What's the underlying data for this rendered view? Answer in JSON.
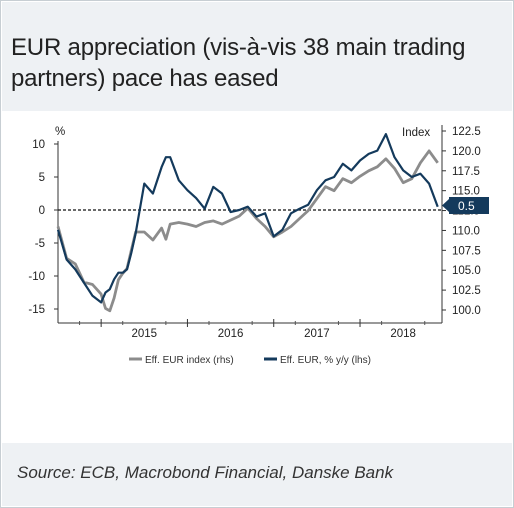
{
  "title": "EUR appreciation (vis-à-vis 38 main trading partners) pace has eased",
  "source": "Source: ECB, Macrobond Financial, Danske Bank",
  "colors": {
    "index_series": "#8c8c8c",
    "yy_series": "#143a5c",
    "badge": "#143a5c",
    "band": "#eef1f4"
  },
  "chart_data": {
    "type": "line",
    "x_axis": {
      "ticks": [
        "2015",
        "2016",
        "2017",
        "2018"
      ],
      "range": [
        2014.5,
        2018.95
      ]
    },
    "y_left": {
      "label": "%",
      "ticks": [
        "10",
        "5",
        "0",
        "-5",
        "-10",
        "-15"
      ],
      "range": [
        -15,
        10
      ]
    },
    "y_right": {
      "label": "Index",
      "ticks": [
        "122.5",
        "120.0",
        "117.5",
        "115.0",
        "112.5",
        "110.0",
        "107.5",
        "105.0",
        "102.5",
        "100.0"
      ],
      "range": [
        100,
        122.5
      ]
    },
    "zero_line": "dashed",
    "end_badge": "0.5",
    "legend": [
      "Eff. EUR index (rhs)",
      "Eff. EUR, % y/y (lhs)"
    ],
    "series": [
      {
        "name": "Eff. EUR index (rhs)",
        "axis": "right",
        "x": [
          2014.5,
          2014.6,
          2014.7,
          2014.8,
          2014.9,
          2015.0,
          2015.05,
          2015.1,
          2015.15,
          2015.2,
          2015.25,
          2015.3,
          2015.35,
          2015.4,
          2015.5,
          2015.6,
          2015.7,
          2015.75,
          2015.8,
          2015.9,
          2016.0,
          2016.1,
          2016.2,
          2016.3,
          2016.4,
          2016.5,
          2016.6,
          2016.7,
          2016.8,
          2016.9,
          2017.0,
          2017.1,
          2017.2,
          2017.3,
          2017.4,
          2017.5,
          2017.6,
          2017.7,
          2017.8,
          2017.9,
          2018.0,
          2018.1,
          2018.2,
          2018.3,
          2018.4,
          2018.5,
          2018.6,
          2018.7,
          2018.8,
          2018.9
        ],
        "y": [
          110.5,
          106.5,
          105.8,
          103.5,
          103.2,
          102.0,
          100.2,
          99.9,
          101.5,
          103.8,
          104.6,
          105.2,
          107.5,
          109.8,
          109.8,
          108.8,
          110.3,
          108.9,
          110.8,
          111.0,
          110.8,
          110.5,
          111.0,
          111.2,
          110.8,
          111.3,
          111.8,
          112.8,
          111.5,
          110.5,
          109.2,
          109.8,
          110.5,
          111.5,
          112.5,
          114.0,
          115.5,
          115.0,
          116.5,
          116.0,
          116.8,
          117.5,
          118.0,
          119.0,
          117.8,
          116.0,
          116.5,
          118.5,
          120.0,
          118.5
        ]
      },
      {
        "name": "Eff. EUR, % y/y (lhs)",
        "axis": "left",
        "x": [
          2014.5,
          2014.6,
          2014.7,
          2014.8,
          2014.9,
          2015.0,
          2015.05,
          2015.1,
          2015.15,
          2015.2,
          2015.25,
          2015.3,
          2015.35,
          2015.4,
          2015.5,
          2015.6,
          2015.7,
          2015.75,
          2015.8,
          2015.9,
          2016.0,
          2016.1,
          2016.2,
          2016.3,
          2016.4,
          2016.5,
          2016.6,
          2016.7,
          2016.8,
          2016.9,
          2017.0,
          2017.1,
          2017.2,
          2017.3,
          2017.4,
          2017.5,
          2017.6,
          2017.7,
          2017.8,
          2017.9,
          2018.0,
          2018.1,
          2018.2,
          2018.3,
          2018.4,
          2018.5,
          2018.6,
          2018.7,
          2018.8,
          2018.9
        ],
        "y": [
          -3.0,
          -7.5,
          -9.0,
          -11.0,
          -13.0,
          -14.0,
          -12.5,
          -12.0,
          -10.5,
          -9.5,
          -9.5,
          -9.0,
          -6.5,
          -3.5,
          4.0,
          2.5,
          6.5,
          8.0,
          8.0,
          4.5,
          3.0,
          1.8,
          0.2,
          3.5,
          2.5,
          -0.3,
          0.0,
          0.5,
          -1.0,
          -0.5,
          -4.0,
          -3.0,
          -0.5,
          0.2,
          0.8,
          3.0,
          4.5,
          5.0,
          7.0,
          6.0,
          7.5,
          8.5,
          9.0,
          11.5,
          8.0,
          6.0,
          5.0,
          5.5,
          4.0,
          0.5
        ]
      }
    ]
  }
}
